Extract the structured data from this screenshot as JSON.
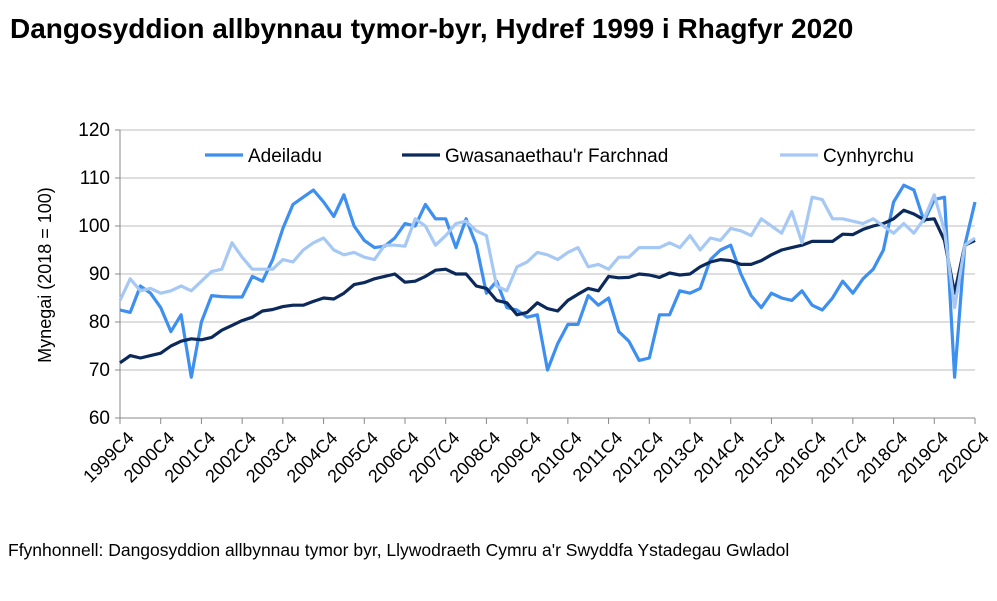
{
  "chart_data": {
    "type": "line",
    "title": "Dangosyddion allbynnau tymor-byr, Hydref 1999 i Rhagfyr 2020",
    "y_label": "Mynegai (2018 = 100)",
    "source": "Ffynhonnell: Dangosyddion allbynnau tymor byr, Llywodraeth Cymru a'r Swyddfa Ystadegau Gwladol",
    "categories": [
      "1999C4",
      null,
      null,
      null,
      "2000C4",
      null,
      null,
      null,
      "2001C4",
      null,
      null,
      null,
      "2002C4",
      null,
      null,
      null,
      "2003C4",
      null,
      null,
      null,
      "2004C4",
      null,
      null,
      null,
      "2005C4",
      null,
      null,
      null,
      "2006C4",
      null,
      null,
      null,
      "2007C4",
      null,
      null,
      null,
      "2008C4",
      null,
      null,
      null,
      "2009C4",
      null,
      null,
      null,
      "2010C4",
      null,
      null,
      null,
      "2011C4",
      null,
      null,
      null,
      "2012C4",
      null,
      null,
      null,
      "2013C4",
      null,
      null,
      null,
      "2014C4",
      null,
      null,
      null,
      "2015C4",
      null,
      null,
      null,
      "2016C4",
      null,
      null,
      null,
      "2017C4",
      null,
      null,
      null,
      "2018C4",
      null,
      null,
      null,
      "2019C4",
      null,
      null,
      null,
      "2020C4"
    ],
    "series": [
      {
        "name": "Adeiladu",
        "color": "#3d8ff0",
        "values": [
          82.5,
          82,
          87.5,
          86,
          83,
          78,
          81.5,
          68.5,
          80,
          85.5,
          85.3,
          85.2,
          85.2,
          89.5,
          88.5,
          93,
          99.5,
          104.5,
          106,
          107.5,
          105,
          102,
          106.5,
          100,
          97,
          95.5,
          95.8,
          97.5,
          100.5,
          100,
          104.5,
          101.5,
          101.5,
          95.5,
          101.5,
          96,
          86,
          88.5,
          83,
          82.5,
          81,
          81.5,
          70,
          75.5,
          79.5,
          79.5,
          85.5,
          83.5,
          85,
          78,
          76,
          72,
          72.5,
          81.5,
          81.5,
          86.5,
          86,
          87,
          93,
          95,
          96,
          90,
          85.5,
          83,
          86,
          85,
          84.5,
          86.5,
          83.5,
          82.5,
          85,
          88.5,
          86,
          89,
          91,
          95,
          105,
          108.5,
          107.5,
          101,
          105.5,
          106,
          68.5,
          96,
          105
        ]
      },
      {
        "name": "Gwasanaethau'r Farchnad",
        "color": "#0b2a5b",
        "values": [
          71.5,
          73,
          72.5,
          73,
          73.5,
          75,
          76,
          76.5,
          76.3,
          76.8,
          78.3,
          79.3,
          80.3,
          81,
          82.3,
          82.6,
          83.2,
          83.5,
          83.5,
          84.3,
          85,
          84.8,
          86,
          87.8,
          88.2,
          89,
          89.5,
          90,
          88.3,
          88.5,
          89.5,
          90.8,
          91,
          90,
          90,
          87.5,
          87,
          84.5,
          84,
          81.5,
          82,
          84,
          82.8,
          82.3,
          84.5,
          85.8,
          87,
          86.5,
          89.5,
          89.2,
          89.3,
          90,
          89.8,
          89.3,
          90.2,
          89.8,
          90,
          91.5,
          92.5,
          93,
          92.8,
          92,
          92,
          92.8,
          94,
          95,
          95.5,
          96,
          96.8,
          96.8,
          96.8,
          98.3,
          98.2,
          99.3,
          100,
          100.5,
          101.5,
          103.3,
          102.5,
          101.3,
          101.5,
          97,
          86,
          96,
          97
        ]
      },
      {
        "name": "Cynhyrchu",
        "color": "#a6c8f5",
        "values": [
          84.5,
          89,
          86.5,
          87,
          86,
          86.5,
          87.5,
          86.5,
          88.5,
          90.5,
          91,
          96.5,
          93.5,
          91,
          91,
          91,
          93,
          92.5,
          95,
          96.5,
          97.5,
          95,
          94,
          94.5,
          93.5,
          93,
          96,
          96,
          95.8,
          101.5,
          100,
          96,
          98,
          100.5,
          101,
          99,
          98,
          87.5,
          86.5,
          91.5,
          92.5,
          94.5,
          94,
          93,
          94.5,
          95.5,
          91.5,
          92,
          91,
          93.5,
          93.5,
          95.5,
          95.5,
          95.5,
          96.5,
          95.5,
          98,
          95,
          97.5,
          97,
          99.5,
          99,
          98,
          101.5,
          100,
          98.5,
          103,
          96.5,
          106,
          105.5,
          101.5,
          101.5,
          101,
          100.5,
          101.5,
          100,
          98.5,
          100.5,
          98.5,
          101.5,
          106.5,
          99,
          83,
          96,
          97.5
        ]
      }
    ],
    "ylim": [
      60,
      120
    ],
    "yticks": [
      60,
      70,
      80,
      90,
      100,
      110,
      120
    ],
    "grid": true
  }
}
